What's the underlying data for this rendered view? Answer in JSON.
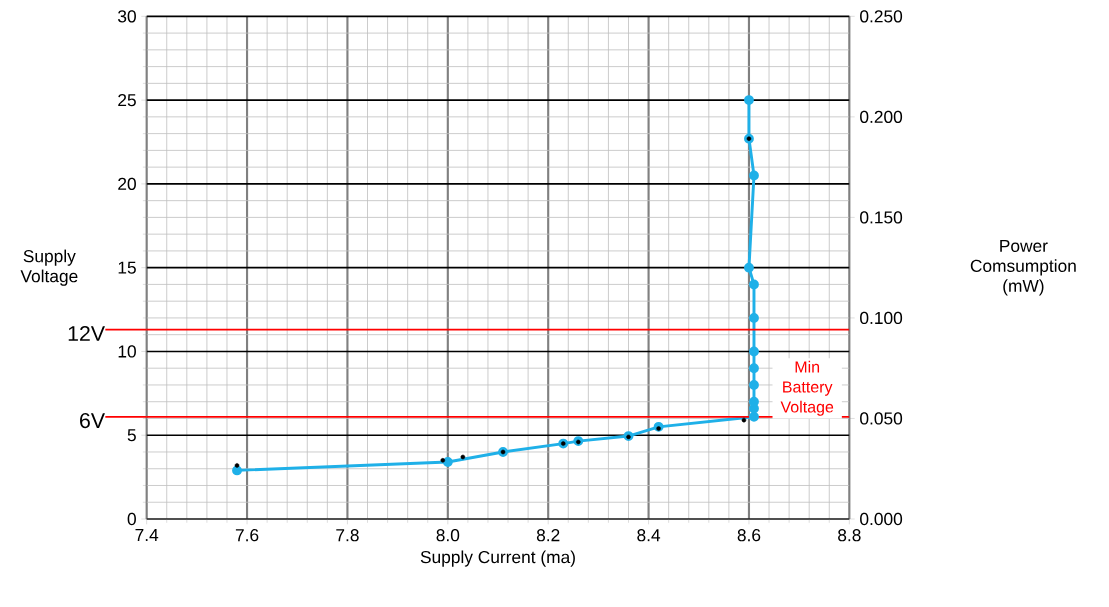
{
  "chart_data": {
    "type": "line",
    "xlabel": "Supply Current (ma)",
    "ylabel": "Supply Voltage",
    "y2label": "Power Comsumption (mW)",
    "series": [
      {
        "type": "scatter",
        "color": "#000000",
        "marker": "circle",
        "x": [
          7.58,
          7.99,
          8.03,
          8.11,
          8.23,
          8.26,
          8.36,
          8.42,
          8.59,
          8.6
        ],
        "values": [
          3.2,
          3.5,
          3.7,
          4.0,
          4.5,
          4.6,
          4.9,
          5.4,
          5.9,
          22.7
        ]
      },
      {
        "color": "#1fb0e8",
        "marker": "circle",
        "line_style": "solid",
        "x": [
          7.58,
          8.0,
          8.11,
          8.23,
          8.26,
          8.36,
          8.42,
          8.61,
          8.61,
          8.61,
          8.61,
          8.61,
          8.61,
          8.61,
          8.61,
          8.6,
          8.61,
          8.6,
          8.6
        ],
        "values": [
          2.9,
          3.4,
          4.0,
          4.5,
          4.65,
          4.95,
          5.5,
          6.1,
          6.6,
          7.0,
          8.0,
          9.0,
          10.0,
          12.0,
          14.0,
          15.0,
          20.5,
          22.7,
          25.0
        ]
      }
    ],
    "xlim": [
      7.4,
      8.8
    ],
    "xticks": [
      7.4,
      7.6,
      7.8,
      {
        "value": 8.0,
        "label": "8.0"
      },
      8.2,
      8.4,
      8.6,
      8.8
    ],
    "ylim": [
      0,
      30
    ],
    "yticks": [
      0,
      5,
      10,
      15,
      20,
      25,
      30
    ],
    "y2lim": [
      0,
      0.25
    ],
    "y2ticks": [
      {
        "value": 0,
        "label": "0.000"
      },
      {
        "value": 0.05,
        "label": "0.050"
      },
      {
        "value": 0.1,
        "label": "0.100"
      },
      {
        "value": 0.15,
        "label": "0.150"
      },
      {
        "value": 0.2,
        "label": "0.200"
      },
      {
        "value": 0.25,
        "label": "0.250"
      }
    ],
    "ref_lines": [
      {
        "axis": "y",
        "value": 11.3,
        "label": "12V",
        "color": "#ff0000"
      },
      {
        "axis": "y",
        "value": 6.1,
        "label": "6V",
        "color": "#ff0000"
      }
    ],
    "annotations": [
      "Min Battery Voltage"
    ],
    "grid": true
  }
}
